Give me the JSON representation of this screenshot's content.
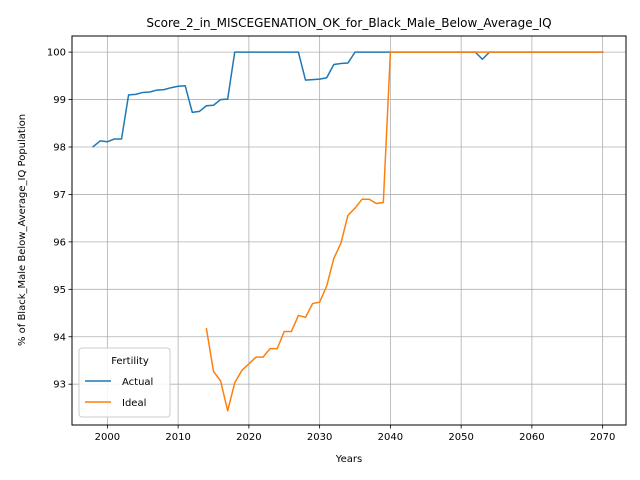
{
  "chart_data": {
    "type": "line",
    "title": "Score_2_in_MISCEGENATION_OK_for_Black_Male_Below_Average_IQ",
    "xlabel": "Years",
    "ylabel": "% of Black_Male Below_Average_IQ Population",
    "xlim": [
      1995,
      2073.3
    ],
    "ylim": [
      92.14,
      100.34
    ],
    "xticks": [
      2000,
      2010,
      2020,
      2030,
      2040,
      2050,
      2060,
      2070
    ],
    "yticks": [
      93,
      94,
      95,
      96,
      97,
      98,
      99,
      100
    ],
    "grid": true,
    "legend": {
      "title": "Fertility",
      "placement": "lower-left"
    },
    "series": [
      {
        "name": "Actual",
        "color": "#1f77b4",
        "x": [
          1998,
          1999,
          2000,
          2001,
          2002,
          2003,
          2004,
          2005,
          2006,
          2007,
          2008,
          2009,
          2010,
          2011,
          2012,
          2013,
          2014,
          2015,
          2016,
          2017,
          2018,
          2019,
          2020,
          2021,
          2022,
          2023,
          2024,
          2025,
          2026,
          2027,
          2028,
          2029,
          2030,
          2031,
          2032,
          2033,
          2034,
          2035,
          2036,
          2037,
          2038,
          2039,
          2040,
          2041,
          2042,
          2043,
          2044,
          2045,
          2046,
          2047,
          2048,
          2049,
          2050,
          2051,
          2052,
          2053,
          2054,
          2055,
          2056,
          2057,
          2058,
          2059,
          2060,
          2061,
          2062,
          2063,
          2064,
          2065,
          2066,
          2067,
          2068,
          2069,
          2070
        ],
        "y": [
          98.01,
          98.13,
          98.11,
          98.17,
          98.17,
          99.1,
          99.11,
          99.15,
          99.16,
          99.2,
          99.21,
          99.25,
          99.28,
          99.29,
          98.73,
          98.75,
          98.87,
          98.88,
          99.0,
          99.01,
          100,
          100,
          100,
          100,
          100,
          100,
          100,
          100,
          100,
          100,
          99.41,
          99.42,
          99.43,
          99.46,
          99.74,
          99.76,
          99.77,
          100,
          100,
          100,
          100,
          100,
          100,
          100,
          100,
          100,
          100,
          100,
          100,
          100,
          100,
          100,
          100,
          100,
          100,
          99.85,
          100,
          100,
          100,
          100,
          100,
          100,
          100,
          100,
          100,
          100,
          100,
          100,
          100,
          100,
          100,
          100,
          100
        ]
      },
      {
        "name": "Ideal",
        "color": "#ff7f0e",
        "x": [
          2014,
          2015,
          2016,
          2017,
          2018,
          2019,
          2020,
          2021,
          2022,
          2023,
          2024,
          2025,
          2026,
          2027,
          2028,
          2029,
          2030,
          2031,
          2032,
          2033,
          2034,
          2035,
          2036,
          2037,
          2038,
          2039,
          2040,
          2041,
          2042,
          2043,
          2044,
          2045,
          2046,
          2047,
          2048,
          2049,
          2050,
          2051,
          2052,
          2053,
          2054,
          2055,
          2056,
          2057,
          2058,
          2059,
          2060,
          2061,
          2062,
          2063,
          2064,
          2065,
          2066,
          2067,
          2068,
          2069,
          2070
        ],
        "y": [
          94.17,
          93.27,
          93.07,
          92.44,
          93.03,
          93.29,
          93.43,
          93.57,
          93.57,
          93.75,
          93.75,
          94.11,
          94.11,
          94.45,
          94.41,
          94.7,
          94.73,
          95.07,
          95.65,
          95.97,
          96.56,
          96.71,
          96.9,
          96.9,
          96.81,
          96.83,
          100,
          100,
          100,
          100,
          100,
          100,
          100,
          100,
          100,
          100,
          100,
          100,
          100,
          100,
          100,
          100,
          100,
          100,
          100,
          100,
          100,
          100,
          100,
          100,
          100,
          100,
          100,
          100,
          100,
          100,
          100
        ]
      }
    ]
  }
}
